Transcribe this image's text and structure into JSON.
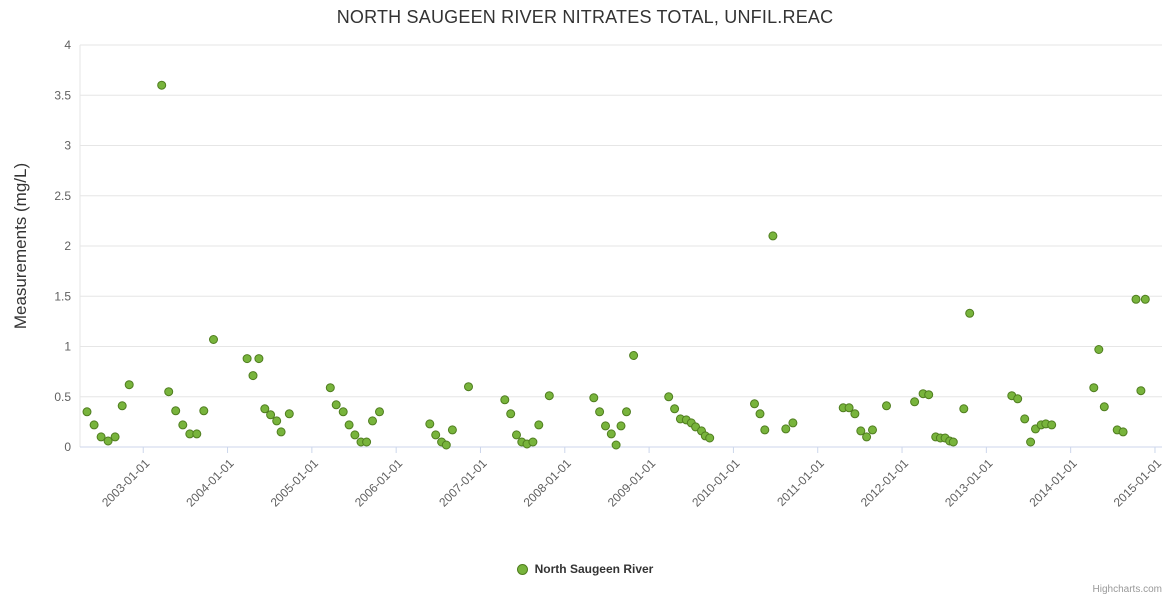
{
  "chart": {
    "title": "NORTH SAUGEEN RIVER NITRATES TOTAL, UNFIL.REAC",
    "y_axis_title": "Measurements (mg/L)",
    "legend_label": "North Saugeen River",
    "credits": "Highcharts.com",
    "colors": {
      "point_fill": "#78b43c",
      "point_stroke": "#4f7d1f",
      "grid": "#e6e6e6",
      "axis": "#ccd6eb",
      "label": "#606060",
      "title_text": "#333333",
      "legend_text": "#333333",
      "credits_text": "#999999",
      "background": "#ffffff"
    }
  },
  "chart_data": {
    "type": "scatter",
    "title": "NORTH SAUGEEN RIVER NITRATES TOTAL, UNFIL.REAC",
    "xlabel": "",
    "ylabel": "Measurements (mg/L)",
    "xlim": [
      "2002-04-01",
      "2015-02-01"
    ],
    "ylim": [
      0,
      4
    ],
    "y_ticks": [
      0,
      0.5,
      1,
      1.5,
      2,
      2.5,
      3,
      3.5,
      4
    ],
    "x_tick_labels": [
      "2003-01-01",
      "2004-01-01",
      "2005-01-01",
      "2006-01-01",
      "2007-01-01",
      "2008-01-01",
      "2009-01-01",
      "2010-01-01",
      "2011-01-01",
      "2012-01-01",
      "2013-01-01",
      "2014-01-01",
      "2015-01-01"
    ],
    "grid": "horizontal",
    "legend_position": "bottom-center",
    "series": [
      {
        "name": "North Saugeen River",
        "points": [
          [
            "2002-05-01",
            0.35
          ],
          [
            "2002-06-01",
            0.22
          ],
          [
            "2002-07-01",
            0.1
          ],
          [
            "2002-08-01",
            0.06
          ],
          [
            "2002-09-01",
            0.1
          ],
          [
            "2002-10-01",
            0.41
          ],
          [
            "2002-11-01",
            0.62
          ],
          [
            "2003-03-20",
            3.6
          ],
          [
            "2003-04-20",
            0.55
          ],
          [
            "2003-05-20",
            0.36
          ],
          [
            "2003-06-20",
            0.22
          ],
          [
            "2003-07-20",
            0.13
          ],
          [
            "2003-08-20",
            0.13
          ],
          [
            "2003-09-20",
            0.36
          ],
          [
            "2003-11-01",
            1.07
          ],
          [
            "2004-03-25",
            0.88
          ],
          [
            "2004-04-20",
            0.71
          ],
          [
            "2004-05-15",
            0.88
          ],
          [
            "2004-06-10",
            0.38
          ],
          [
            "2004-07-05",
            0.32
          ],
          [
            "2004-08-01",
            0.26
          ],
          [
            "2004-08-20",
            0.15
          ],
          [
            "2004-09-25",
            0.33
          ],
          [
            "2005-03-20",
            0.59
          ],
          [
            "2005-04-15",
            0.42
          ],
          [
            "2005-05-15",
            0.35
          ],
          [
            "2005-06-10",
            0.22
          ],
          [
            "2005-07-05",
            0.12
          ],
          [
            "2005-08-01",
            0.05
          ],
          [
            "2005-08-25",
            0.05
          ],
          [
            "2005-09-20",
            0.26
          ],
          [
            "2005-10-20",
            0.35
          ],
          [
            "2006-05-25",
            0.23
          ],
          [
            "2006-06-20",
            0.12
          ],
          [
            "2006-07-15",
            0.05
          ],
          [
            "2006-08-05",
            0.02
          ],
          [
            "2006-09-01",
            0.17
          ],
          [
            "2006-11-10",
            0.6
          ],
          [
            "2007-04-15",
            0.47
          ],
          [
            "2007-05-10",
            0.33
          ],
          [
            "2007-06-05",
            0.12
          ],
          [
            "2007-06-28",
            0.05
          ],
          [
            "2007-07-20",
            0.03
          ],
          [
            "2007-08-15",
            0.05
          ],
          [
            "2007-09-10",
            0.22
          ],
          [
            "2007-10-25",
            0.51
          ],
          [
            "2008-05-05",
            0.49
          ],
          [
            "2008-05-30",
            0.35
          ],
          [
            "2008-06-25",
            0.21
          ],
          [
            "2008-07-20",
            0.13
          ],
          [
            "2008-08-10",
            0.02
          ],
          [
            "2008-09-01",
            0.21
          ],
          [
            "2008-09-25",
            0.35
          ],
          [
            "2008-10-25",
            0.91
          ],
          [
            "2009-03-25",
            0.5
          ],
          [
            "2009-04-20",
            0.38
          ],
          [
            "2009-05-15",
            0.28
          ],
          [
            "2009-06-10",
            0.27
          ],
          [
            "2009-07-01",
            0.24
          ],
          [
            "2009-07-20",
            0.2
          ],
          [
            "2009-08-15",
            0.16
          ],
          [
            "2009-09-01",
            0.11
          ],
          [
            "2009-09-20",
            0.09
          ],
          [
            "2010-04-01",
            0.43
          ],
          [
            "2010-04-25",
            0.33
          ],
          [
            "2010-05-15",
            0.17
          ],
          [
            "2010-06-20",
            2.1
          ],
          [
            "2010-08-15",
            0.18
          ],
          [
            "2010-09-15",
            0.24
          ],
          [
            "2011-04-20",
            0.39
          ],
          [
            "2011-05-15",
            0.39
          ],
          [
            "2011-06-10",
            0.33
          ],
          [
            "2011-07-05",
            0.16
          ],
          [
            "2011-07-30",
            0.1
          ],
          [
            "2011-08-25",
            0.17
          ],
          [
            "2011-10-25",
            0.41
          ],
          [
            "2012-02-25",
            0.45
          ],
          [
            "2012-04-01",
            0.53
          ],
          [
            "2012-04-25",
            0.52
          ],
          [
            "2012-05-25",
            0.1
          ],
          [
            "2012-06-15",
            0.09
          ],
          [
            "2012-07-05",
            0.09
          ],
          [
            "2012-07-25",
            0.06
          ],
          [
            "2012-08-10",
            0.05
          ],
          [
            "2012-09-25",
            0.38
          ],
          [
            "2012-10-20",
            1.33
          ],
          [
            "2013-04-20",
            0.51
          ],
          [
            "2013-05-15",
            0.48
          ],
          [
            "2013-06-15",
            0.28
          ],
          [
            "2013-07-10",
            0.05
          ],
          [
            "2013-08-01",
            0.18
          ],
          [
            "2013-08-25",
            0.22
          ],
          [
            "2013-09-15",
            0.23
          ],
          [
            "2013-10-10",
            0.22
          ],
          [
            "2014-04-10",
            0.59
          ],
          [
            "2014-05-01",
            0.97
          ],
          [
            "2014-05-25",
            0.4
          ],
          [
            "2014-07-20",
            0.17
          ],
          [
            "2014-08-15",
            0.15
          ],
          [
            "2014-10-10",
            1.47
          ],
          [
            "2014-11-01",
            0.56
          ],
          [
            "2014-11-20",
            1.47
          ]
        ]
      }
    ]
  }
}
